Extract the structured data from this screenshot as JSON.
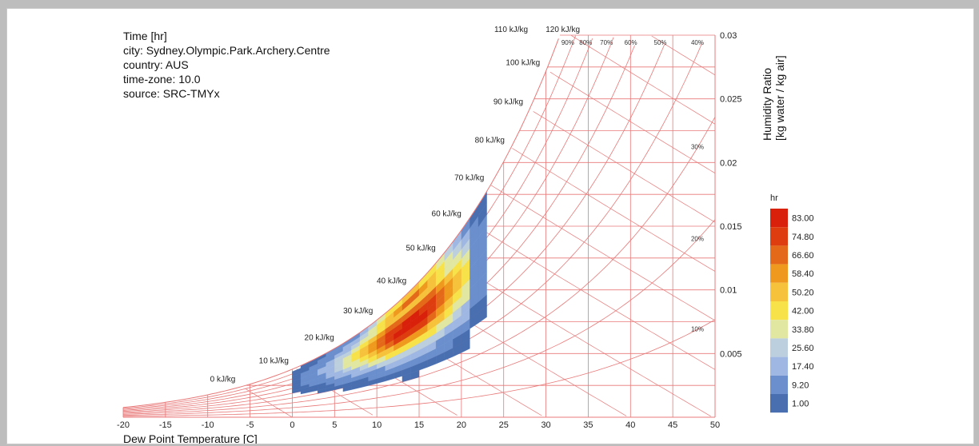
{
  "info_lines": [
    "Time [hr]",
    "city: Sydney.Olympic.Park.Archery.Centre",
    "country: AUS",
    "time-zone: 10.0",
    "source: SRC-TMYx"
  ],
  "colors": {
    "grid": "#e87878",
    "ramp": [
      "#4a6fb0",
      "#6a8fcc",
      "#9fb8e3",
      "#bccfdf",
      "#e1e7a0",
      "#f7e24a",
      "#f6c23c",
      "#ef9a1e",
      "#e46a1a",
      "#de3d10",
      "#d8200a"
    ]
  },
  "chart_data": {
    "type": "heatmap",
    "xlabel": "Dew Point Temperature [C]",
    "ylabel": "Humidity Ratio",
    "ylabel_units": "[kg water / kg air]",
    "xlim": [
      -20,
      50
    ],
    "ylim": [
      0,
      0.03
    ],
    "x_ticks": [
      "-20",
      "-15",
      "-10",
      "-5",
      "0",
      "5",
      "10",
      "15",
      "20",
      "25",
      "30",
      "35",
      "40",
      "45",
      "50"
    ],
    "y_ticks": [
      {
        "v": 0.005,
        "label": "0.005"
      },
      {
        "v": 0.01,
        "label": "0.01"
      },
      {
        "v": 0.015,
        "label": "0.015"
      },
      {
        "v": 0.02,
        "label": "0.02"
      },
      {
        "v": 0.025,
        "label": "0.025"
      },
      {
        "v": 0.03,
        "label": "0.03"
      }
    ],
    "enthalpy_lines": [
      {
        "h": 0,
        "label": "0 kJ/kg"
      },
      {
        "h": 10,
        "label": "10 kJ/kg"
      },
      {
        "h": 20,
        "label": "20 kJ/kg"
      },
      {
        "h": 30,
        "label": "30 kJ/kg"
      },
      {
        "h": 40,
        "label": "40 kJ/kg"
      },
      {
        "h": 50,
        "label": "50 kJ/kg"
      },
      {
        "h": 60,
        "label": "60 kJ/kg"
      },
      {
        "h": 70,
        "label": "70 kJ/kg"
      },
      {
        "h": 80,
        "label": "80 kJ/kg"
      },
      {
        "h": 90,
        "label": "90 kJ/kg"
      },
      {
        "h": 100,
        "label": "100 kJ/kg"
      },
      {
        "h": 110,
        "label": "110 kJ/kg"
      },
      {
        "h": 120,
        "label": "120 kJ/kg"
      }
    ],
    "rh_lines": [
      {
        "rh": 90,
        "label": "90%"
      },
      {
        "rh": 80,
        "label": "80%"
      },
      {
        "rh": 70,
        "label": "70%"
      },
      {
        "rh": 60,
        "label": "60%"
      },
      {
        "rh": 50,
        "label": "50%"
      },
      {
        "rh": 40,
        "label": "40%"
      },
      {
        "rh": 30,
        "label": "30%"
      },
      {
        "rh": 20,
        "label": "20%"
      },
      {
        "rh": 10,
        "label": "10%"
      }
    ],
    "legend": {
      "title": "hr",
      "labels": [
        "1.00",
        "9.20",
        "17.40",
        "25.60",
        "33.80",
        "42.00",
        "50.20",
        "58.40",
        "66.60",
        "74.80",
        "83.00"
      ]
    },
    "heatmap_bins": {
      "t_step": 1,
      "t_range": [
        -9,
        23
      ],
      "rh_range": [
        15,
        100
      ],
      "max_hours": 83
    }
  }
}
